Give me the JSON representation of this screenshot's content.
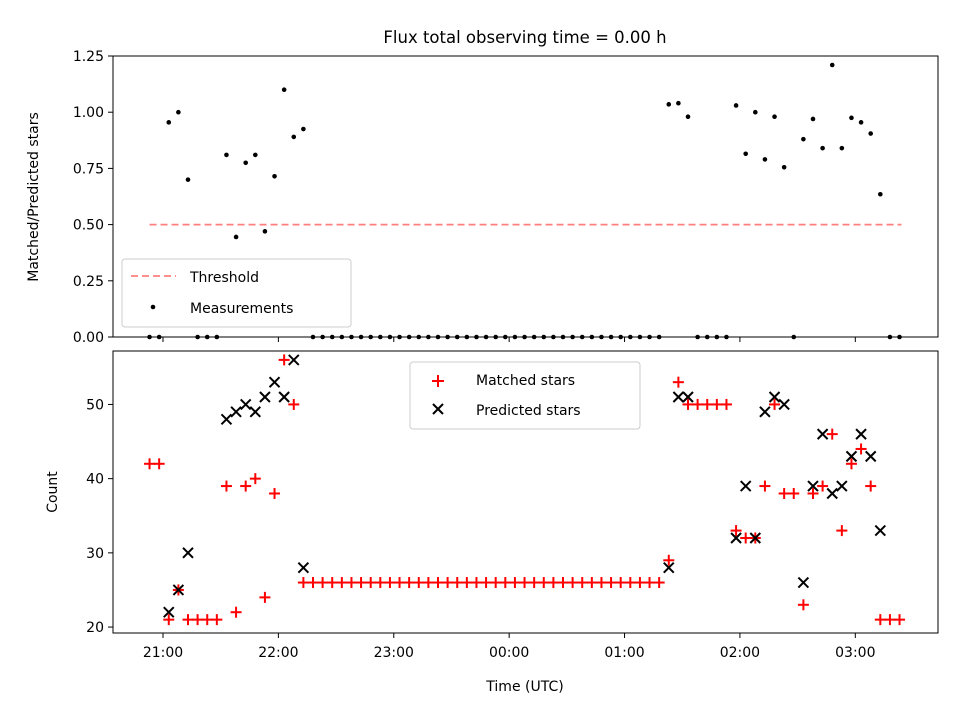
{
  "figure": {
    "title": "Flux total observing time = 0.00 h",
    "xlabel": "Time (UTC)"
  },
  "colors": {
    "threshold": "#ff7f7f",
    "measurements": "#000000",
    "matched": "#ff0000",
    "predicted": "#000000"
  },
  "chart_data": [
    {
      "type": "scatter",
      "ylabel": "Matched/Predicted stars",
      "ylim": [
        0,
        1.25
      ],
      "yticks": [
        0.0,
        0.25,
        0.5,
        0.75,
        1.0,
        1.25
      ],
      "ytick_labels": [
        "0.00",
        "0.25",
        "0.50",
        "0.75",
        "1.00",
        "1.25"
      ],
      "xlim": [
        "2000-01-01T20:34",
        "2000-01-02T03:43"
      ],
      "legend": {
        "placement": "lower-left",
        "entries": [
          "Threshold",
          "Measurements"
        ]
      },
      "threshold": {
        "name": "Threshold",
        "y": 0.5,
        "x": [
          "20:53",
          "03:24"
        ]
      },
      "series": [
        {
          "name": "Measurements",
          "points": [
            [
              "20:53",
              0
            ],
            [
              "20:58",
              0
            ],
            [
              "21:03",
              0.955
            ],
            [
              "21:08",
              1.0
            ],
            [
              "21:13",
              0.7
            ],
            [
              "21:18",
              0
            ],
            [
              "21:23",
              0
            ],
            [
              "21:28",
              0
            ],
            [
              "21:33",
              0.81
            ],
            [
              "21:38",
              0.445
            ],
            [
              "21:43",
              0.775
            ],
            [
              "21:48",
              0.81
            ],
            [
              "21:53",
              0.47
            ],
            [
              "21:58",
              0.715
            ],
            [
              "22:03",
              1.1
            ],
            [
              "22:08",
              0.89
            ],
            [
              "22:13",
              0.925
            ],
            [
              "22:18",
              0
            ],
            [
              "22:23",
              0
            ],
            [
              "22:28",
              0
            ],
            [
              "22:33",
              0
            ],
            [
              "22:38",
              0
            ],
            [
              "22:43",
              0
            ],
            [
              "22:48",
              0
            ],
            [
              "22:53",
              0
            ],
            [
              "22:58",
              0
            ],
            [
              "23:03",
              0
            ],
            [
              "23:08",
              0
            ],
            [
              "23:13",
              0
            ],
            [
              "23:18",
              0
            ],
            [
              "23:23",
              0
            ],
            [
              "23:28",
              0
            ],
            [
              "23:33",
              0
            ],
            [
              "23:38",
              0
            ],
            [
              "23:43",
              0
            ],
            [
              "23:48",
              0
            ],
            [
              "23:53",
              0
            ],
            [
              "23:58",
              0
            ],
            [
              "00:03",
              0
            ],
            [
              "00:08",
              0
            ],
            [
              "00:13",
              0
            ],
            [
              "00:18",
              0
            ],
            [
              "00:23",
              0
            ],
            [
              "00:28",
              0
            ],
            [
              "00:33",
              0
            ],
            [
              "00:38",
              0
            ],
            [
              "00:43",
              0
            ],
            [
              "00:48",
              0
            ],
            [
              "00:53",
              0
            ],
            [
              "00:58",
              0
            ],
            [
              "01:03",
              0
            ],
            [
              "01:08",
              0
            ],
            [
              "01:13",
              0
            ],
            [
              "01:18",
              0
            ],
            [
              "01:23",
              1.035
            ],
            [
              "01:28",
              1.04
            ],
            [
              "01:33",
              0.98
            ],
            [
              "01:38",
              0
            ],
            [
              "01:43",
              0
            ],
            [
              "01:48",
              0
            ],
            [
              "01:53",
              0
            ],
            [
              "01:58",
              1.03
            ],
            [
              "02:03",
              0.815
            ],
            [
              "02:08",
              1.0
            ],
            [
              "02:13",
              0.79
            ],
            [
              "02:18",
              0.98
            ],
            [
              "02:23",
              0.755
            ],
            [
              "02:28",
              0
            ],
            [
              "02:33",
              0.88
            ],
            [
              "02:38",
              0.97
            ],
            [
              "02:43",
              0.84
            ],
            [
              "02:48",
              1.21
            ],
            [
              "02:53",
              0.84
            ],
            [
              "02:58",
              0.975
            ],
            [
              "03:03",
              0.955
            ],
            [
              "03:08",
              0.905
            ],
            [
              "03:13",
              0.635
            ],
            [
              "03:18",
              0
            ],
            [
              "03:23",
              0
            ]
          ]
        }
      ]
    },
    {
      "type": "scatter",
      "ylabel": "Count",
      "ylim": [
        19.2,
        57.2
      ],
      "yticks": [
        20,
        30,
        40,
        50
      ],
      "ytick_labels": [
        "20",
        "30",
        "40",
        "50"
      ],
      "xlim": [
        "2000-01-01T20:34",
        "2000-01-02T03:43"
      ],
      "xticks": [
        "2000-01-01T21:00",
        "2000-01-01T22:00",
        "2000-01-01T23:00",
        "2000-01-02T00:00",
        "2000-01-02T01:00",
        "2000-01-02T02:00",
        "2000-01-02T03:00"
      ],
      "xtick_labels": [
        "21:00",
        "22:00",
        "23:00",
        "00:00",
        "01:00",
        "02:00",
        "03:00"
      ],
      "legend": {
        "placement": "upper-center",
        "entries": [
          "Matched stars",
          "Predicted stars"
        ]
      },
      "series": [
        {
          "name": "Matched stars",
          "marker": "+",
          "points": [
            [
              "20:53",
              42
            ],
            [
              "20:58",
              42
            ],
            [
              "21:03",
              21
            ],
            [
              "21:08",
              25
            ],
            [
              "21:13",
              21
            ],
            [
              "21:18",
              21
            ],
            [
              "21:23",
              21
            ],
            [
              "21:28",
              21
            ],
            [
              "21:33",
              39
            ],
            [
              "21:38",
              22
            ],
            [
              "21:43",
              39
            ],
            [
              "21:48",
              40
            ],
            [
              "21:53",
              24
            ],
            [
              "21:58",
              38
            ],
            [
              "22:03",
              56
            ],
            [
              "22:08",
              50
            ],
            [
              "22:13",
              26
            ],
            [
              "22:18",
              26
            ],
            [
              "22:23",
              26
            ],
            [
              "22:28",
              26
            ],
            [
              "22:33",
              26
            ],
            [
              "22:38",
              26
            ],
            [
              "22:43",
              26
            ],
            [
              "22:48",
              26
            ],
            [
              "22:53",
              26
            ],
            [
              "22:58",
              26
            ],
            [
              "23:03",
              26
            ],
            [
              "23:08",
              26
            ],
            [
              "23:13",
              26
            ],
            [
              "23:18",
              26
            ],
            [
              "23:23",
              26
            ],
            [
              "23:28",
              26
            ],
            [
              "23:33",
              26
            ],
            [
              "23:38",
              26
            ],
            [
              "23:43",
              26
            ],
            [
              "23:48",
              26
            ],
            [
              "23:53",
              26
            ],
            [
              "23:58",
              26
            ],
            [
              "00:03",
              26
            ],
            [
              "00:08",
              26
            ],
            [
              "00:13",
              26
            ],
            [
              "00:18",
              26
            ],
            [
              "00:23",
              26
            ],
            [
              "00:28",
              26
            ],
            [
              "00:33",
              26
            ],
            [
              "00:38",
              26
            ],
            [
              "00:43",
              26
            ],
            [
              "00:48",
              26
            ],
            [
              "00:53",
              26
            ],
            [
              "00:58",
              26
            ],
            [
              "01:03",
              26
            ],
            [
              "01:08",
              26
            ],
            [
              "01:13",
              26
            ],
            [
              "01:18",
              26
            ],
            [
              "01:23",
              29
            ],
            [
              "01:28",
              53
            ],
            [
              "01:33",
              50
            ],
            [
              "01:38",
              50
            ],
            [
              "01:43",
              50
            ],
            [
              "01:48",
              50
            ],
            [
              "01:53",
              50
            ],
            [
              "01:58",
              33
            ],
            [
              "02:03",
              32
            ],
            [
              "02:08",
              32
            ],
            [
              "02:13",
              39
            ],
            [
              "02:18",
              50
            ],
            [
              "02:23",
              38
            ],
            [
              "02:28",
              38
            ],
            [
              "02:33",
              23
            ],
            [
              "02:38",
              38
            ],
            [
              "02:43",
              39
            ],
            [
              "02:48",
              46
            ],
            [
              "02:53",
              33
            ],
            [
              "02:58",
              42
            ],
            [
              "03:03",
              44
            ],
            [
              "03:08",
              39
            ],
            [
              "03:13",
              21
            ],
            [
              "03:18",
              21
            ],
            [
              "03:23",
              21
            ]
          ]
        },
        {
          "name": "Predicted stars",
          "marker": "x",
          "points": [
            [
              "21:03",
              22
            ],
            [
              "21:08",
              25
            ],
            [
              "21:13",
              30
            ],
            [
              "21:33",
              48
            ],
            [
              "21:38",
              49
            ],
            [
              "21:43",
              50
            ],
            [
              "21:48",
              49
            ],
            [
              "21:53",
              51
            ],
            [
              "21:58",
              53
            ],
            [
              "22:03",
              51
            ],
            [
              "22:08",
              56
            ],
            [
              "22:13",
              28
            ],
            [
              "01:23",
              28
            ],
            [
              "01:28",
              51
            ],
            [
              "01:33",
              51
            ],
            [
              "01:58",
              32
            ],
            [
              "02:03",
              39
            ],
            [
              "02:08",
              32
            ],
            [
              "02:13",
              49
            ],
            [
              "02:18",
              51
            ],
            [
              "02:23",
              50
            ],
            [
              "02:33",
              26
            ],
            [
              "02:38",
              39
            ],
            [
              "02:43",
              46
            ],
            [
              "02:48",
              38
            ],
            [
              "02:53",
              39
            ],
            [
              "02:58",
              43
            ],
            [
              "03:03",
              46
            ],
            [
              "03:08",
              43
            ],
            [
              "03:13",
              33
            ]
          ]
        }
      ]
    }
  ]
}
